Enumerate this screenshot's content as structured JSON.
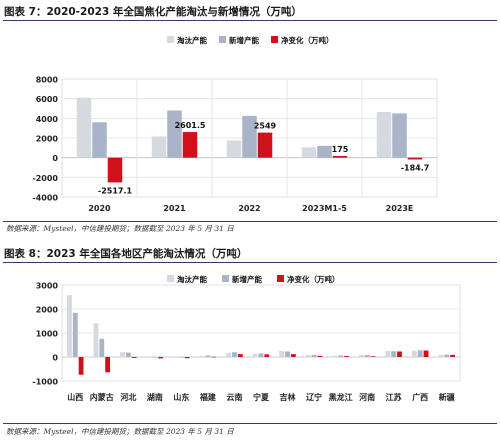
{
  "figure1": {
    "title": "图表 7：2020-2023 年全国焦化产能淘汰与新增情况（万吨）",
    "source": "数据来源：Mysteel，中信建投期货；数据截至 2023 年 5 月 31 日"
  },
  "figure2": {
    "title": "图表 8：2023 年全国各地区产能淘汰情况（万吨）",
    "source": "数据来源：Mysteel，中信建投期货；数据截至 2023 年 5 月 31 日"
  },
  "colors": {
    "retired": "#d5d9e0",
    "added": "#a9b4c8",
    "net": "#d0111b",
    "grid": "#e0e0e0",
    "rule": "#2b3f6b"
  },
  "chart_data": [
    {
      "type": "bar",
      "categories": [
        "2020",
        "2021",
        "2022",
        "2023M1-5",
        "2023E"
      ],
      "series": [
        {
          "name": "淘汰产能",
          "values": [
            6100,
            2150,
            1750,
            1050,
            4650
          ]
        },
        {
          "name": "新增产能",
          "values": [
            3600,
            4800,
            4250,
            1200,
            4500
          ]
        },
        {
          "name": "净变化（万吨）",
          "values": [
            -2517.1,
            2601.5,
            2549,
            175,
            -184.7
          ]
        }
      ],
      "data_labels": [
        "-2517.1",
        "2601.5",
        "2549",
        "175",
        "-184.7"
      ],
      "yticks": [
        "-4000",
        "-2000",
        "0",
        "2000",
        "4000",
        "6000",
        "8000"
      ],
      "ylim": [
        -4000,
        8000
      ],
      "grid": true,
      "legend": "top"
    },
    {
      "type": "bar",
      "categories": [
        "山西",
        "内蒙古",
        "河北",
        "湖南",
        "山东",
        "福建",
        "云南",
        "宁夏",
        "吉林",
        "辽宁",
        "黑龙江",
        "河南",
        "江苏",
        "广西",
        "新疆"
      ],
      "series": [
        {
          "name": "淘汰产能",
          "values": [
            2580,
            1400,
            200,
            30,
            30,
            50,
            170,
            130,
            250,
            90,
            50,
            80,
            250,
            260,
            90
          ]
        },
        {
          "name": "新增产能",
          "values": [
            1840,
            760,
            180,
            0,
            0,
            60,
            200,
            150,
            230,
            90,
            60,
            80,
            240,
            280,
            100
          ]
        },
        {
          "name": "净变化（万吨）",
          "values": [
            -740,
            -640,
            -40,
            -60,
            -50,
            10,
            120,
            110,
            120,
            50,
            40,
            30,
            230,
            270,
            90
          ]
        }
      ],
      "yticks": [
        "-1000",
        "0",
        "1000",
        "2000",
        "3000"
      ],
      "ylim": [
        -1000,
        3000
      ],
      "grid": true,
      "legend": "top"
    }
  ]
}
